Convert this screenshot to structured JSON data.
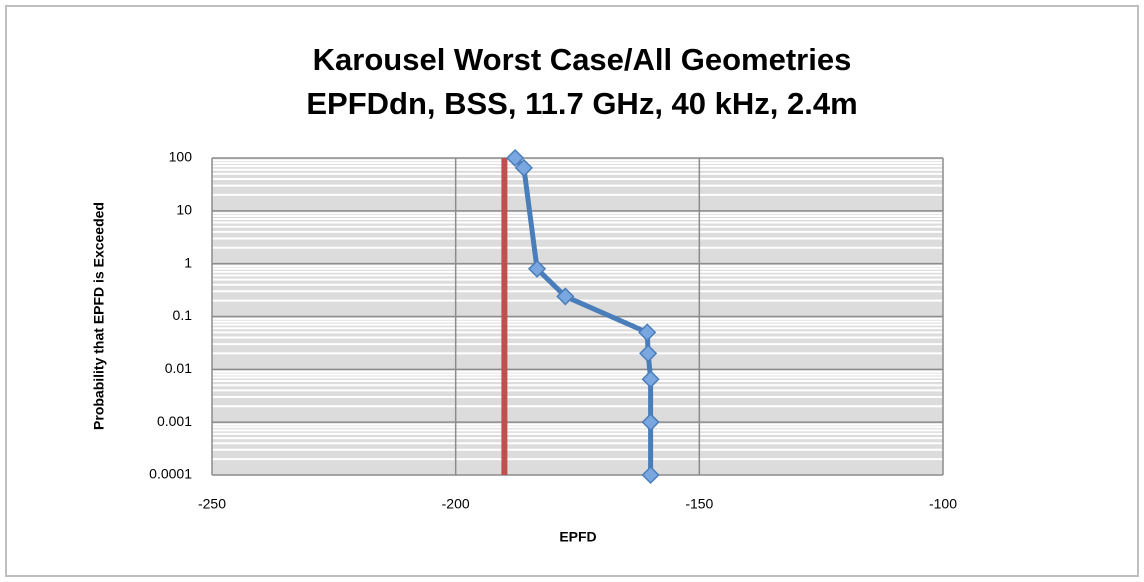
{
  "chart_data": {
    "type": "line",
    "title": [
      "Karousel Worst Case/All Geometries",
      "EPFDdn, BSS, 11.7 GHz, 40 kHz, 2.4m"
    ],
    "x_label": "EPFD",
    "y_label": "Probability that EPFD is Exceeded",
    "series": [
      {
        "color": "#4a7ebb",
        "x": [
          -187.8,
          -186,
          -183.3,
          -177.5,
          -160.7,
          -160.5,
          -160,
          -160,
          -160
        ],
        "values": [
          100,
          65,
          0.8,
          0.24,
          0.05,
          0.02,
          0.0065,
          0.001,
          0.0001
        ]
      }
    ],
    "vlines": [
      {
        "x": -190,
        "color": "#c0504d"
      }
    ],
    "xlim": [
      -250,
      -100
    ],
    "xticks": [
      -250,
      -200,
      -150,
      -100
    ],
    "ylim": [
      0.0001,
      100
    ],
    "yticks": [
      0.0001,
      0.001,
      0.01,
      0.1,
      1,
      10,
      100
    ],
    "y_log": true,
    "grid": true
  }
}
